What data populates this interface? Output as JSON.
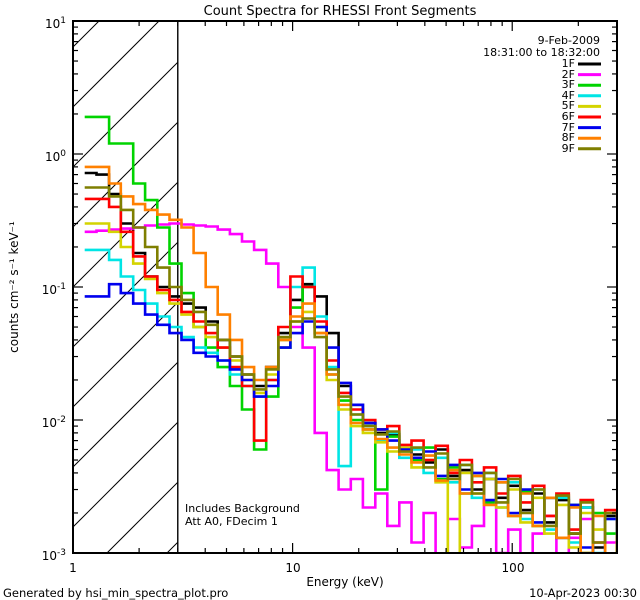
{
  "annotations": {
    "date": "9-Feb-2009",
    "time_range": "18:31:00 to 18:32:00",
    "note_line1": "Includes Background",
    "note_line2": "Att A0, FDecim 1",
    "footer_left": "Generated by hsi_min_spectra_plot.pro",
    "footer_right": "10-Apr-2023 00:30"
  },
  "chart_data": {
    "type": "line",
    "style": "step-histogram log-log spectra",
    "title": "Count Spectra for RHESSI Front Segments",
    "xlabel": "Energy (keV)",
    "ylabel": "counts cm⁻² s⁻¹ keV⁻¹",
    "xlim": [
      1,
      300
    ],
    "ylim": [
      0.001,
      10
    ],
    "grid": false,
    "legend_position": "top-right",
    "hatch_region_kev": [
      1,
      3
    ],
    "x_ticks": [
      {
        "v": 1,
        "label": "1"
      },
      {
        "v": 10,
        "label": "10"
      },
      {
        "v": 100,
        "label": "100"
      }
    ],
    "y_ticks": [
      {
        "v": 10,
        "base": "10",
        "exp": "1"
      },
      {
        "v": 1,
        "base": "10",
        "exp": "0"
      },
      {
        "v": 0.1,
        "base": "10",
        "exp": "-1"
      },
      {
        "v": 0.01,
        "base": "10",
        "exp": "-2"
      },
      {
        "v": 0.001,
        "base": "10",
        "exp": "-3"
      }
    ],
    "energies_kev": [
      1.13,
      1.28,
      1.46,
      1.65,
      1.88,
      2.13,
      2.42,
      2.75,
      3.12,
      3.54,
      4.02,
      4.56,
      5.18,
      5.88,
      6.68,
      7.58,
      8.61,
      9.77,
      11.1,
      12.6,
      14.3,
      16.2,
      18.4,
      20.9,
      23.8,
      27.0,
      30.6,
      34.8,
      39.5,
      44.8,
      50.9,
      57.7,
      65.5,
      74.4,
      84.5,
      95.9,
      109,
      124,
      140,
      159,
      181,
      205,
      233,
      265,
      300
    ],
    "series": [
      {
        "name": "1F",
        "color": "#000000",
        "values": [
          0.72,
          0.7,
          0.5,
          0.3,
          0.18,
          0.12,
          0.1,
          0.085,
          0.075,
          0.07,
          0.055,
          0.04,
          0.03,
          0.022,
          0.018,
          0.025,
          0.045,
          0.08,
          0.105,
          0.085,
          0.045,
          0.018,
          0.013,
          0.0095,
          0.008,
          0.0078,
          0.006,
          0.0055,
          0.0048,
          0.006,
          0.0038,
          0.0042,
          0.003,
          0.0036,
          0.0026,
          0.0032,
          0.0021,
          0.0028,
          0.0017,
          0.0025,
          0.0014,
          0.0022,
          0.0011,
          0.0019,
          0.0013
        ]
      },
      {
        "name": "2F",
        "color": "#ff00ff",
        "values": [
          0.26,
          0.265,
          0.27,
          0.275,
          0.28,
          0.29,
          0.295,
          0.3,
          0.295,
          0.29,
          0.285,
          0.27,
          0.25,
          0.22,
          0.19,
          0.15,
          0.1,
          0.05,
          0.035,
          0.008,
          0.0042,
          0.003,
          0.0036,
          0.0022,
          0.0028,
          0.0016,
          0.0024,
          0.0012,
          0.002,
          0.0009,
          0.0018,
          0.0011,
          0.0016,
          0.0024,
          0.001,
          0.0015,
          0.0008,
          0.0014,
          0.0019,
          0.0009,
          0.0013,
          0.0018,
          0.0008,
          0.0012,
          0.001
        ]
      },
      {
        "name": "3F",
        "color": "#00d400",
        "values": [
          1.9,
          1.9,
          1.2,
          1.2,
          0.6,
          0.45,
          0.28,
          0.15,
          0.09,
          0.05,
          0.035,
          0.025,
          0.018,
          0.012,
          0.006,
          0.015,
          0.035,
          0.07,
          0.1,
          0.05,
          0.022,
          0.014,
          0.01,
          0.0085,
          0.003,
          0.0075,
          0.0058,
          0.005,
          0.0062,
          0.0036,
          0.0044,
          0.0028,
          0.0038,
          0.0024,
          0.0034,
          0.0019,
          0.0029,
          0.0016,
          0.0026,
          0.0013,
          0.0023,
          0.001,
          0.002,
          0.0014,
          0.0009
        ]
      },
      {
        "name": "4F",
        "color": "#00e5e5",
        "values": [
          0.19,
          0.19,
          0.16,
          0.12,
          0.095,
          0.075,
          0.06,
          0.05,
          0.042,
          0.035,
          0.032,
          0.028,
          0.022,
          0.018,
          0.015,
          0.02,
          0.04,
          0.1,
          0.14,
          0.06,
          0.025,
          0.0045,
          0.011,
          0.009,
          0.007,
          0.008,
          0.0052,
          0.006,
          0.004,
          0.0052,
          0.0034,
          0.0046,
          0.0026,
          0.004,
          0.0022,
          0.0034,
          0.0018,
          0.003,
          0.0015,
          0.0026,
          0.0012,
          0.0022,
          0.001,
          0.0018,
          0.0013
        ]
      },
      {
        "name": "5F",
        "color": "#d4d400",
        "values": [
          0.3,
          0.3,
          0.26,
          0.2,
          0.15,
          0.115,
          0.09,
          0.075,
          0.062,
          0.05,
          0.042,
          0.035,
          0.028,
          0.02,
          0.016,
          0.022,
          0.04,
          0.055,
          0.065,
          0.045,
          0.02,
          0.012,
          0.009,
          0.008,
          0.0068,
          0.0058,
          0.0062,
          0.0044,
          0.005,
          0.0034,
          0.0008,
          0.004,
          0.0028,
          0.0036,
          0.0022,
          0.003,
          0.0017,
          0.0026,
          0.0014,
          0.0023,
          0.0011,
          0.002,
          0.0015,
          0.0009,
          0.0012
        ]
      },
      {
        "name": "6F",
        "color": "#ff0000",
        "values": [
          0.46,
          0.46,
          0.4,
          0.26,
          0.17,
          0.12,
          0.095,
          0.08,
          0.065,
          0.055,
          0.045,
          0.035,
          0.025,
          0.018,
          0.007,
          0.02,
          0.05,
          0.12,
          0.1,
          0.055,
          0.028,
          0.016,
          0.012,
          0.01,
          0.0085,
          0.009,
          0.0065,
          0.007,
          0.005,
          0.0064,
          0.004,
          0.005,
          0.0034,
          0.0044,
          0.0028,
          0.0038,
          0.0024,
          0.0032,
          0.0019,
          0.0028,
          0.0015,
          0.0025,
          0.0012,
          0.0021,
          0.0016
        ]
      },
      {
        "name": "7F",
        "color": "#0000ee",
        "values": [
          0.085,
          0.085,
          0.105,
          0.09,
          0.075,
          0.062,
          0.052,
          0.045,
          0.04,
          0.032,
          0.03,
          0.028,
          0.024,
          0.02,
          0.015,
          0.018,
          0.035,
          0.045,
          0.055,
          0.05,
          0.035,
          0.019,
          0.013,
          0.0095,
          0.0085,
          0.007,
          0.006,
          0.0052,
          0.0058,
          0.0038,
          0.0046,
          0.003,
          0.004,
          0.0025,
          0.0036,
          0.002,
          0.003,
          0.0017,
          0.0026,
          0.0013,
          0.0023,
          0.0011,
          0.0008,
          0.0018,
          0.0012
        ]
      },
      {
        "name": "8F",
        "color": "#ff8000",
        "values": [
          0.8,
          0.8,
          0.6,
          0.48,
          0.42,
          0.38,
          0.35,
          0.32,
          0.28,
          0.18,
          0.1,
          0.062,
          0.04,
          0.025,
          0.02,
          0.025,
          0.04,
          0.06,
          0.075,
          0.045,
          0.022,
          0.013,
          0.0095,
          0.0085,
          0.0072,
          0.0062,
          0.0055,
          0.0048,
          0.0054,
          0.0035,
          0.0042,
          0.0028,
          0.0038,
          0.0023,
          0.0034,
          0.0019,
          0.0028,
          0.0016,
          0.0026,
          0.0013,
          0.0022,
          0.001,
          0.0019,
          0.0008,
          0.0014
        ]
      },
      {
        "name": "9F",
        "color": "#7f7f00",
        "values": [
          0.56,
          0.56,
          0.48,
          0.38,
          0.28,
          0.2,
          0.14,
          0.1,
          0.08,
          0.065,
          0.052,
          0.04,
          0.03,
          0.022,
          0.017,
          0.024,
          0.042,
          0.055,
          0.058,
          0.042,
          0.024,
          0.015,
          0.011,
          0.009,
          0.0078,
          0.0082,
          0.0058,
          0.0062,
          0.0044,
          0.0056,
          0.0036,
          0.0046,
          0.0028,
          0.004,
          0.0024,
          0.0036,
          0.002,
          0.003,
          0.0016,
          0.0027,
          0.0014,
          0.0024,
          0.0012,
          0.002,
          0.0009
        ]
      }
    ]
  }
}
